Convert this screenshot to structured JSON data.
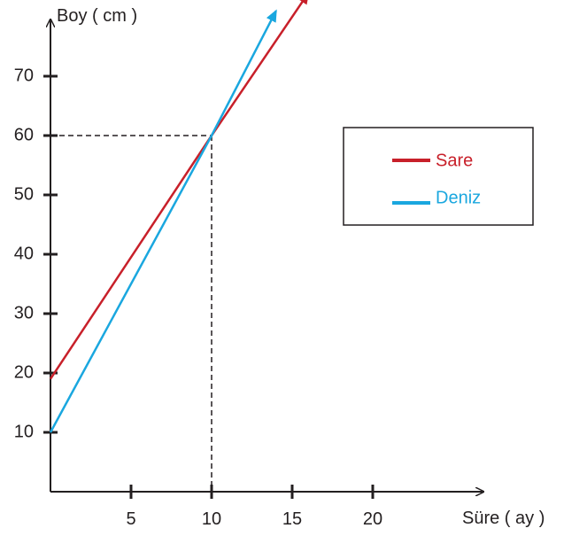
{
  "chart_data": {
    "type": "line",
    "xlabel": "Süre ( ay )",
    "ylabel": "Boy ( cm )",
    "x_ticks": [
      5,
      10,
      15,
      20
    ],
    "y_ticks": [
      10,
      20,
      30,
      40,
      50,
      60,
      70
    ],
    "xlim": [
      0,
      26
    ],
    "ylim": [
      0,
      80
    ],
    "reference_point": {
      "x": 10,
      "y": 60
    },
    "series": [
      {
        "name": "Sare",
        "color": "#c8202a",
        "points": [
          {
            "x": 0,
            "y": 19
          },
          {
            "x": 10,
            "y": 60
          },
          {
            "x": 16,
            "y": 84
          }
        ]
      },
      {
        "name": "Deniz",
        "color": "#1aa7df",
        "points": [
          {
            "x": 0,
            "y": 10
          },
          {
            "x": 10,
            "y": 60
          },
          {
            "x": 14,
            "y": 81
          }
        ]
      }
    ],
    "legend_position": "right"
  }
}
